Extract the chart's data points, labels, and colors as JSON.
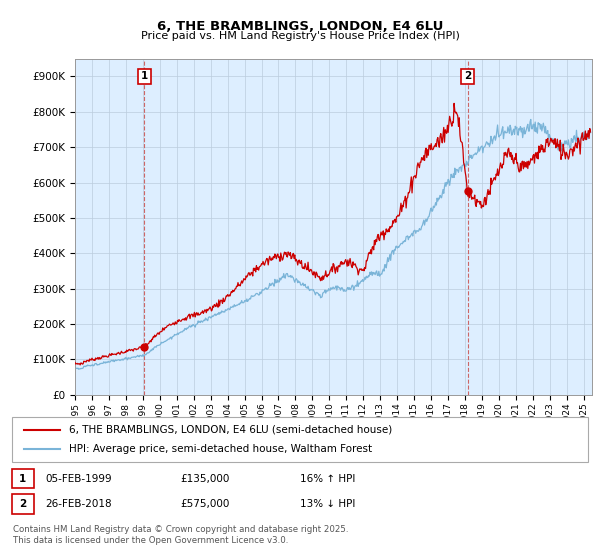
{
  "title": "6, THE BRAMBLINGS, LONDON, E4 6LU",
  "subtitle": "Price paid vs. HM Land Registry's House Price Index (HPI)",
  "ylim": [
    0,
    950000
  ],
  "yticks": [
    0,
    100000,
    200000,
    300000,
    400000,
    500000,
    600000,
    700000,
    800000,
    900000
  ],
  "xlim_start": 1995.0,
  "xlim_end": 2025.5,
  "red_color": "#cc0000",
  "blue_color": "#7ab4d8",
  "chart_bg": "#ddeeff",
  "sale1_x": 1999.09,
  "sale1_y": 135000,
  "sale2_x": 2018.15,
  "sale2_y": 575000,
  "vline1_x": 1999.09,
  "vline2_x": 2018.15,
  "legend_label_red": "6, THE BRAMBLINGS, LONDON, E4 6LU (semi-detached house)",
  "legend_label_blue": "HPI: Average price, semi-detached house, Waltham Forest",
  "footer": "Contains HM Land Registry data © Crown copyright and database right 2025.\nThis data is licensed under the Open Government Licence v3.0.",
  "background_color": "#ffffff",
  "grid_color": "#bbccdd"
}
